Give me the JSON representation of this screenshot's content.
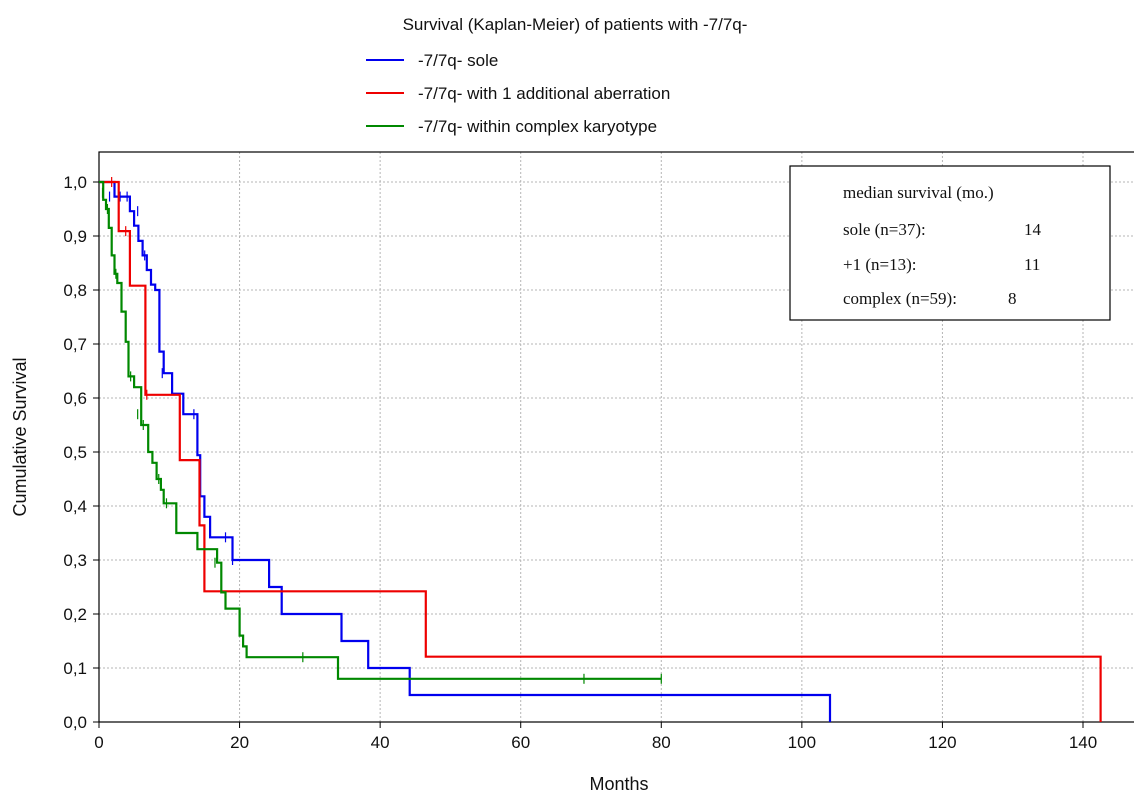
{
  "chart_data": {
    "type": "line",
    "title": "Survival (Kaplan-Meier) of patients with -7/7q-",
    "xlabel": "Months",
    "ylabel": "Cumulative Survival",
    "xlim": [
      0,
      150
    ],
    "ylim": [
      0,
      1.05
    ],
    "x_ticks": [
      0,
      20,
      40,
      60,
      80,
      100,
      120,
      140
    ],
    "x_tick_labels": [
      "0",
      "20",
      "40",
      "60",
      "80",
      "100",
      "120",
      "140"
    ],
    "y_ticks": [
      0,
      0.1,
      0.2,
      0.3,
      0.4,
      0.5,
      0.6,
      0.7,
      0.8,
      0.9,
      1.0
    ],
    "y_tick_labels": [
      "0,0",
      "0,1",
      "0,2",
      "0,3",
      "0,4",
      "0,5",
      "0,6",
      "0,7",
      "0,8",
      "0,9",
      "1,0"
    ],
    "grid": true,
    "legend_position": "top",
    "series": [
      {
        "name": "-7/7q- sole",
        "color": "#0000ee",
        "x": [
          0,
          2.2,
          4.4,
          5.0,
          5.6,
          6.2,
          6.8,
          7.4,
          8.0,
          8.6,
          9.2,
          10.4,
          12.0,
          14.0,
          14.4,
          15.0,
          15.8,
          19.0,
          24.2,
          26.0,
          34.5,
          38.3,
          44.2,
          104.0,
          104.0
        ],
        "y": [
          1.0,
          0.973,
          0.946,
          0.919,
          0.891,
          0.864,
          0.837,
          0.81,
          0.8,
          0.686,
          0.646,
          0.608,
          0.57,
          0.494,
          0.418,
          0.38,
          0.342,
          0.3,
          0.25,
          0.2,
          0.15,
          0.1,
          0.05,
          0.05,
          0.0
        ],
        "censor_x": [
          1.5,
          3.0,
          4.0,
          5.5,
          6.5,
          9.0,
          13.5,
          18.0,
          19.0
        ],
        "censor_y": [
          0.973,
          0.973,
          0.973,
          0.946,
          0.864,
          0.646,
          0.57,
          0.342,
          0.3
        ]
      },
      {
        "name": "-7/7q- with 1 additional aberration",
        "color": "#ee0000",
        "x": [
          0,
          2.8,
          4.4,
          6.6,
          11.5,
          14.3,
          15.0,
          46.5,
          142.5,
          142.5
        ],
        "y": [
          1.0,
          0.909,
          0.808,
          0.606,
          0.485,
          0.364,
          0.242,
          0.121,
          0.121,
          0.0
        ],
        "censor_x": [
          1.8,
          3.8,
          6.8
        ],
        "censor_y": [
          1.0,
          0.909,
          0.606
        ]
      },
      {
        "name": "-7/7q- within complex karyotype",
        "color": "#008800",
        "x": [
          0,
          0.6,
          1.0,
          1.4,
          1.8,
          2.2,
          2.6,
          3.2,
          3.8,
          4.2,
          5.0,
          6.0,
          7.0,
          7.6,
          8.2,
          8.8,
          9.2,
          11.0,
          14.0,
          16.8,
          17.4,
          18.0,
          20.0,
          20.5,
          21.0,
          34.0,
          80.0
        ],
        "y": [
          1.0,
          0.967,
          0.95,
          0.915,
          0.864,
          0.83,
          0.813,
          0.76,
          0.704,
          0.64,
          0.62,
          0.55,
          0.5,
          0.48,
          0.45,
          0.43,
          0.405,
          0.35,
          0.32,
          0.295,
          0.24,
          0.21,
          0.16,
          0.14,
          0.12,
          0.08,
          0.08
        ],
        "censor_x": [
          0.5,
          1.2,
          2.4,
          4.5,
          5.5,
          6.3,
          8.5,
          9.6,
          16.5,
          29.0,
          69.0,
          80.0
        ],
        "censor_y": [
          0.98,
          0.95,
          0.83,
          0.64,
          0.57,
          0.55,
          0.45,
          0.405,
          0.295,
          0.12,
          0.08,
          0.08
        ]
      }
    ],
    "annotation_box": {
      "header": "median survival (mo.)",
      "rows": [
        {
          "label": "sole (n=37):",
          "value": "14"
        },
        {
          "label": "+1 (n=13):",
          "value": "11"
        },
        {
          "label": "complex (n=59):",
          "value": "8"
        }
      ]
    }
  }
}
